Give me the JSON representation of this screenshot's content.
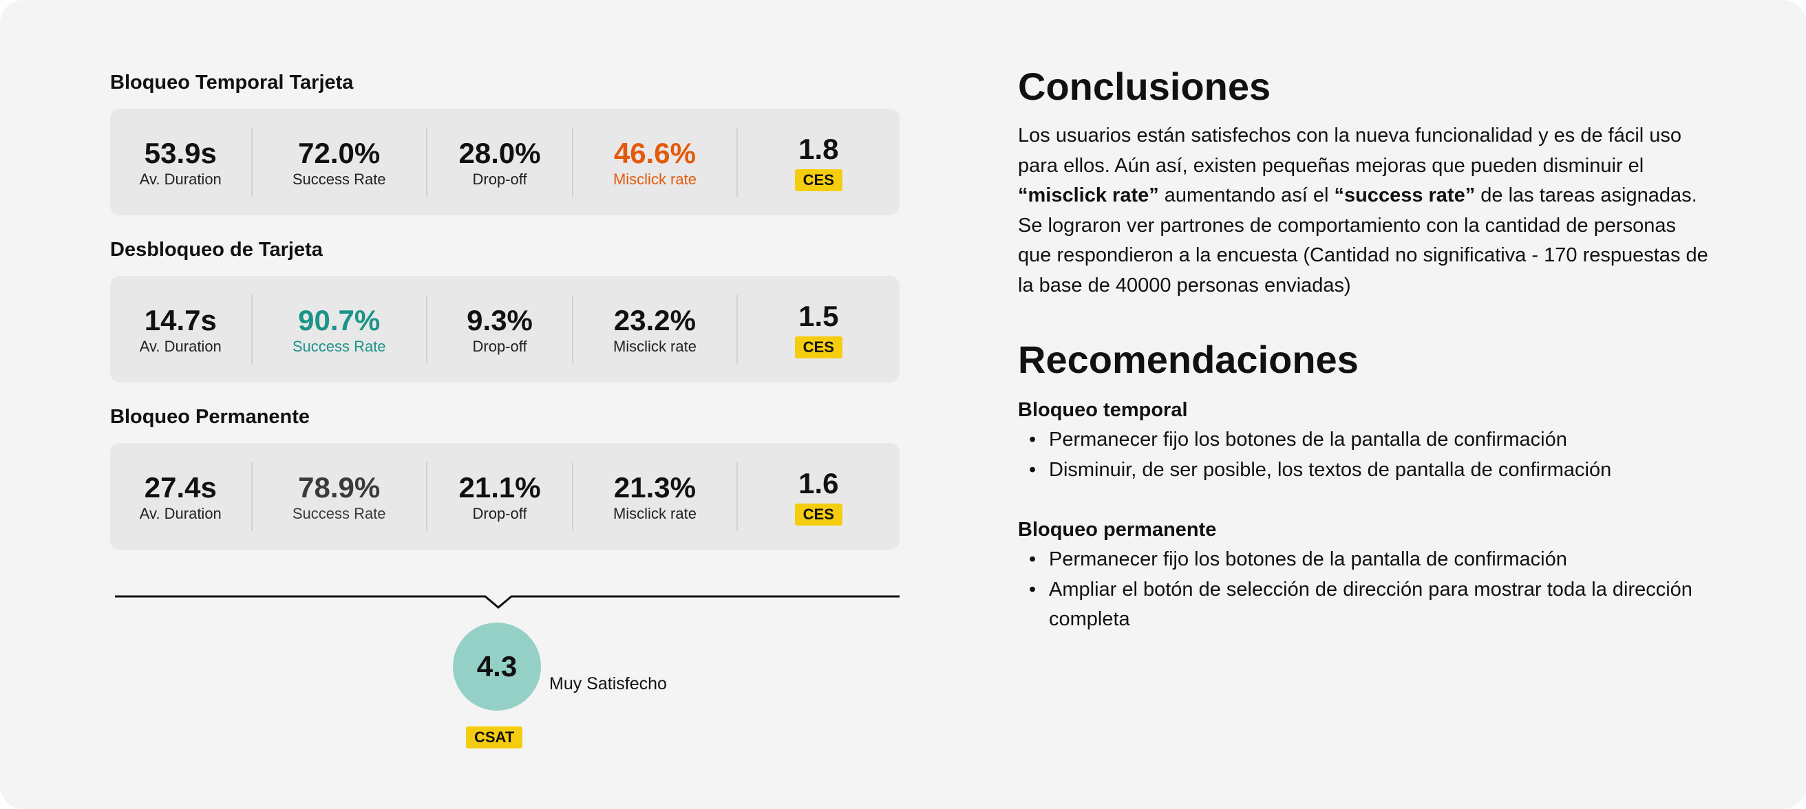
{
  "blocks": [
    {
      "title": "Bloqueo Temporal Tarjeta",
      "metrics": {
        "duration": {
          "value": "53.9s",
          "label": "Av. Duration"
        },
        "success": {
          "value": "72.0%",
          "label": "Success Rate"
        },
        "dropoff": {
          "value": "28.0%",
          "label": "Drop-off"
        },
        "misclick": {
          "value": "46.6%",
          "label": "Misclick rate"
        },
        "ces": {
          "value": "1.8",
          "label": "CES"
        }
      },
      "highlight": {
        "metric": "misclick",
        "color": "#e35a0c"
      }
    },
    {
      "title": "Desbloqueo de Tarjeta",
      "metrics": {
        "duration": {
          "value": "14.7s",
          "label": "Av. Duration"
        },
        "success": {
          "value": "90.7%",
          "label": "Success Rate"
        },
        "dropoff": {
          "value": "9.3%",
          "label": "Drop-off"
        },
        "misclick": {
          "value": "23.2%",
          "label": "Misclick rate"
        },
        "ces": {
          "value": "1.5",
          "label": "CES"
        }
      },
      "highlight": {
        "metric": "success",
        "color": "#1a9488"
      }
    },
    {
      "title": "Bloqueo Permanente",
      "metrics": {
        "duration": {
          "value": "27.4s",
          "label": "Av. Duration"
        },
        "success": {
          "value": "78.9%",
          "label": "Success Rate"
        },
        "dropoff": {
          "value": "21.1%",
          "label": "Drop-off"
        },
        "misclick": {
          "value": "21.3%",
          "label": "Misclick rate"
        },
        "ces": {
          "value": "1.6",
          "label": "CES"
        }
      },
      "highlight": {
        "metric": "success",
        "color": "#3a3a3a"
      }
    }
  ],
  "csat": {
    "value": "4.3",
    "text": "Muy Satisfecho",
    "label": "CSAT",
    "color": "#95d0c6"
  },
  "colors": {
    "badge": "#f5cd0f",
    "card": "#e8e8e8",
    "background": "#f4f4f4"
  },
  "conclusions": {
    "title": "Conclusiones",
    "p1_a": "Los usuarios están satisfechos con la nueva funcionalidad y es de fácil uso para ellos. Aún así, existen pequeñas mejoras que pueden disminuir el ",
    "p1_b": "“misclick rate”",
    "p1_c": " aumentando así el ",
    "p1_d": "“success rate”",
    "p1_e": " de las tareas asignadas.",
    "p2": "Se lograron ver partrones de comportamiento con la cantidad de personas que respondieron a la encuesta (Cantidad no significativa - 170 respuestas de la base de 40000 personas enviadas)"
  },
  "recommendations": {
    "title": "Recomendaciones",
    "groups": [
      {
        "title": "Bloqueo temporal",
        "items": [
          "Permanecer fijo los botones de la pantalla de confirmación",
          "Disminuir, de ser posible, los textos de pantalla de confirmación"
        ]
      },
      {
        "title": "Bloqueo permanente",
        "items": [
          "Permanecer fijo los botones de la pantalla de confirmación",
          "Ampliar el botón de selección de dirección para mostrar toda la dirección completa"
        ]
      }
    ]
  }
}
